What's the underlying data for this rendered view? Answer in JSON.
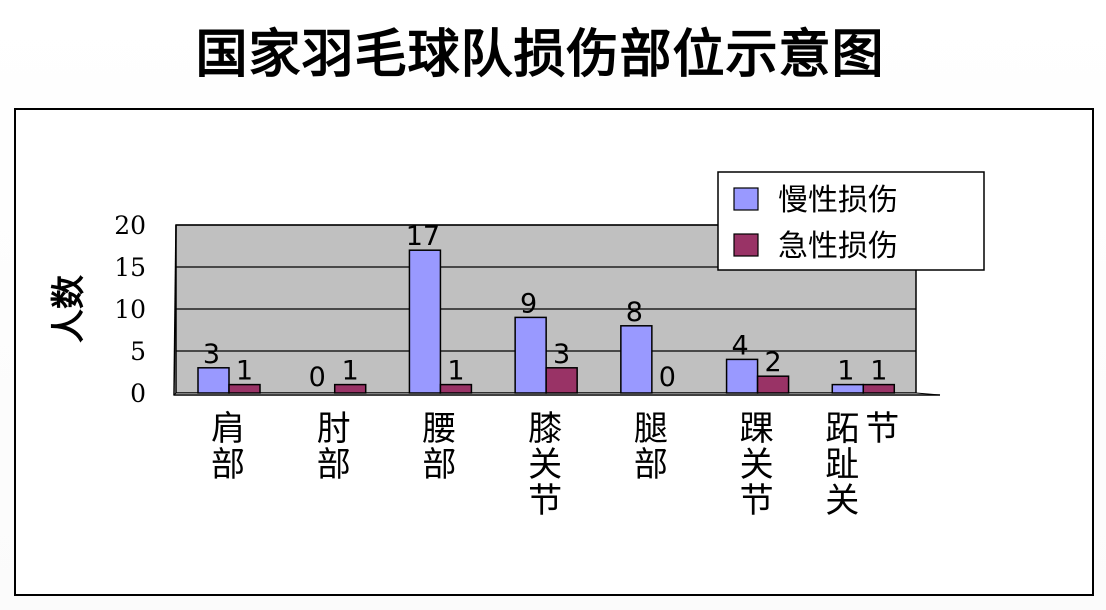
{
  "page": {
    "title": "国家羽毛球队损伤部位示意图"
  },
  "chart_data": {
    "type": "bar",
    "title": "国家羽毛球队损伤部位示意图",
    "ylabel": "人数",
    "xlabel": "",
    "ylim": [
      0,
      20
    ],
    "yticks": [
      0,
      5,
      10,
      15,
      20
    ],
    "grid": true,
    "legend_position": "top-right",
    "categories": [
      "肩部",
      "肘部",
      "腰部",
      "膝关节",
      "腿部",
      "踝关节",
      "跖趾关节"
    ],
    "series": [
      {
        "name": "慢性损伤",
        "color": "#9999ff",
        "values": [
          3,
          0,
          17,
          9,
          8,
          4,
          1
        ]
      },
      {
        "name": "急性损伤",
        "color": "#993366",
        "values": [
          1,
          1,
          1,
          3,
          0,
          2,
          1
        ]
      }
    ],
    "plot_background": "#c0c0c0"
  }
}
